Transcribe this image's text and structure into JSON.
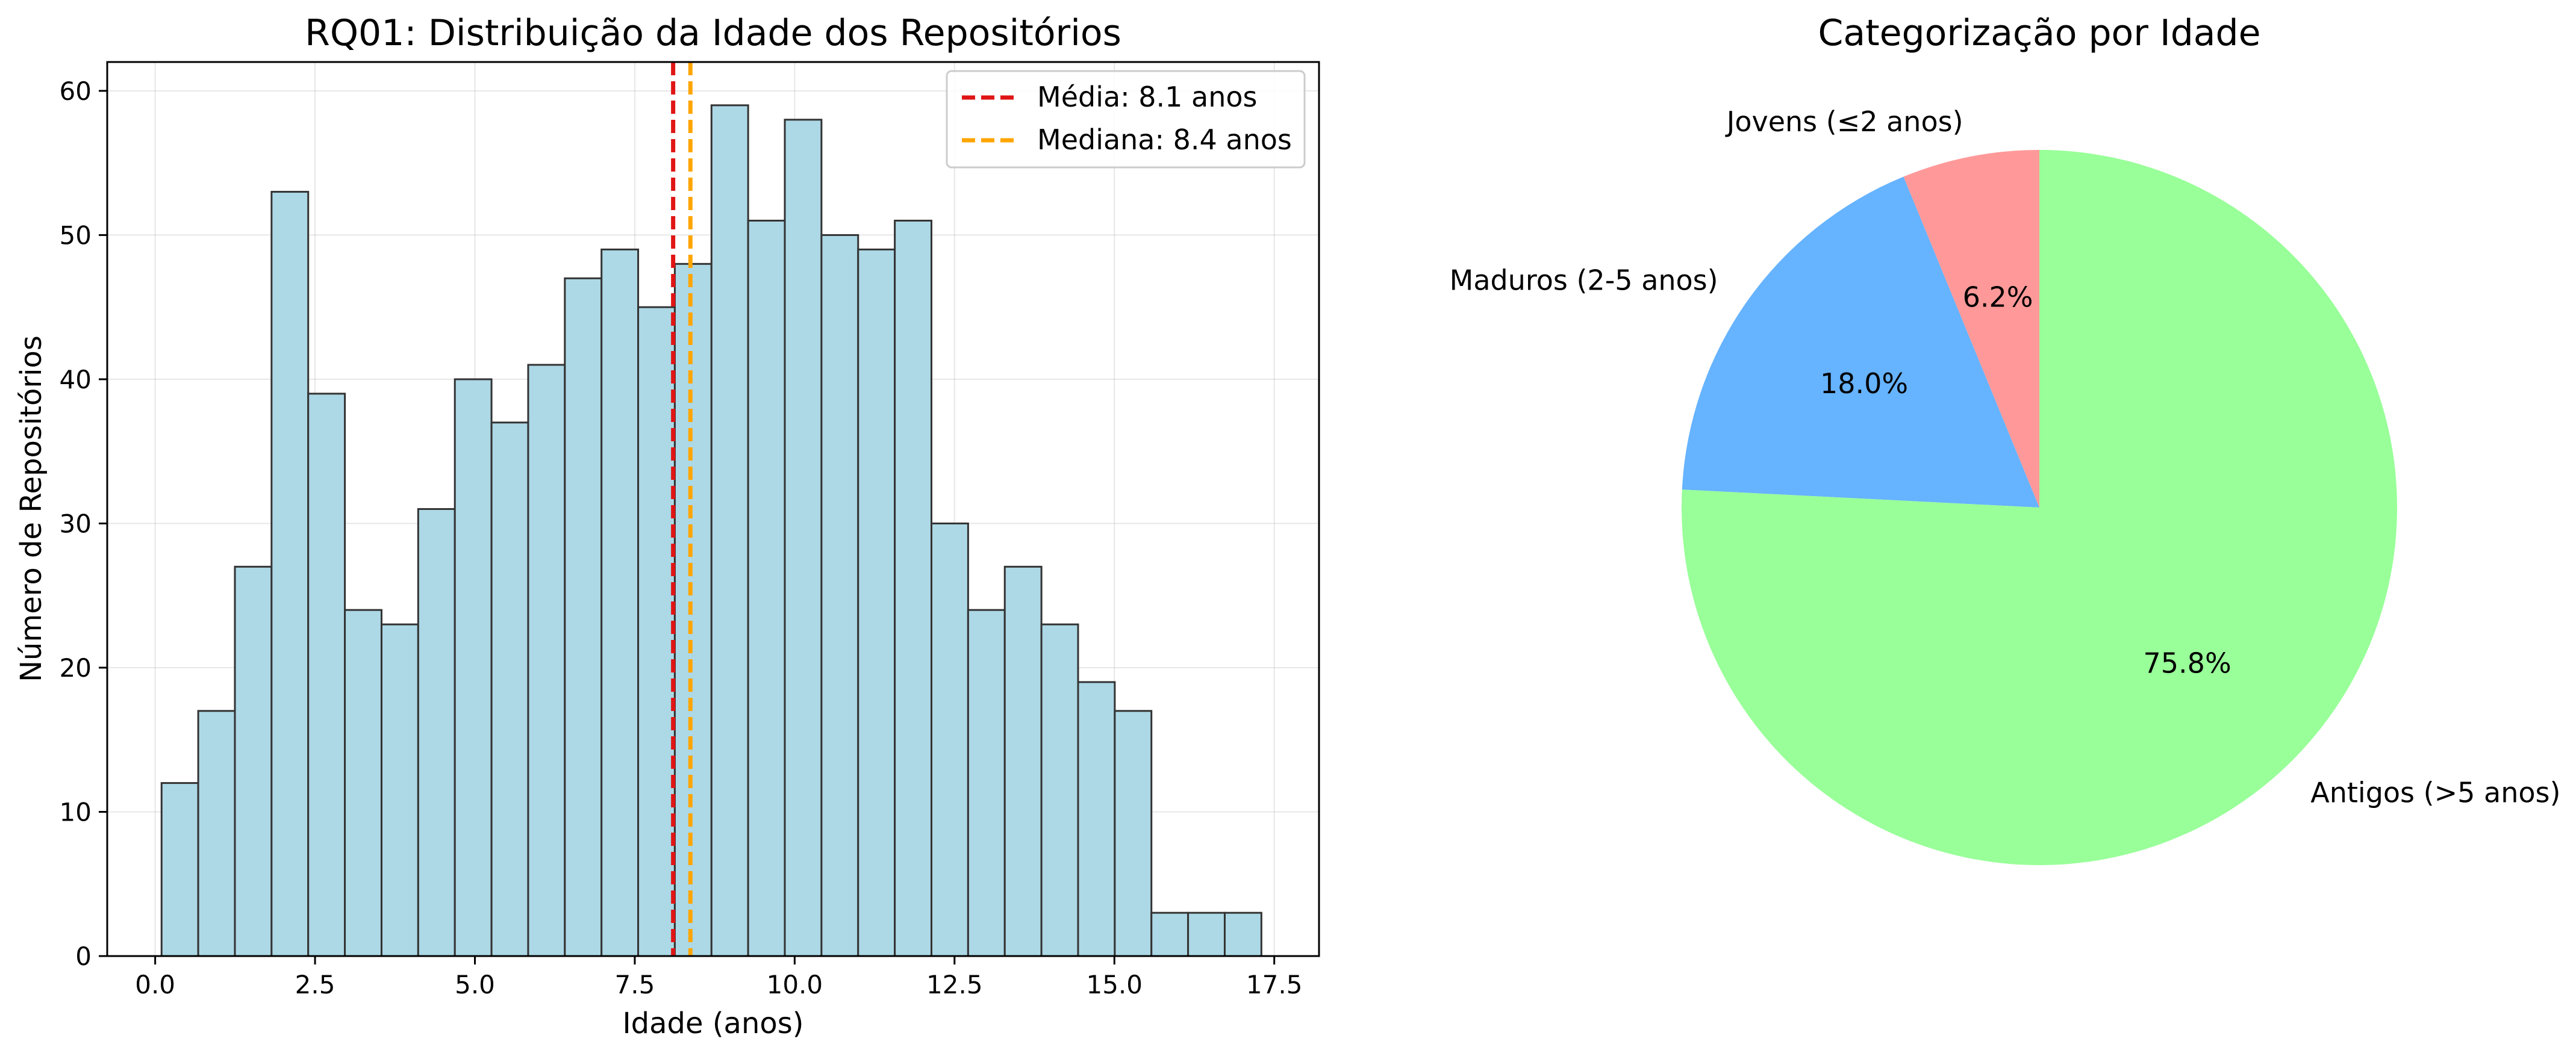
{
  "chart_data": [
    {
      "type": "bar",
      "title": "RQ01: Distribuição da Idade dos Repositórios",
      "xlabel": "Idade (anos)",
      "ylabel": "Número de Repositórios",
      "xlim": [
        -0.75,
        18.2
      ],
      "ylim": [
        0,
        62
      ],
      "grid": true,
      "xticks": [
        0.0,
        2.5,
        5.0,
        7.5,
        10.0,
        12.5,
        15.0,
        17.5
      ],
      "xtick_labels": [
        "0.0",
        "2.5",
        "5.0",
        "7.5",
        "10.0",
        "12.5",
        "15.0",
        "17.5"
      ],
      "yticks": [
        0,
        10,
        20,
        30,
        40,
        50,
        60
      ],
      "ytick_labels": [
        "0",
        "10",
        "20",
        "30",
        "40",
        "50",
        "60"
      ],
      "bins": {
        "start": 0.1,
        "width": 0.5733,
        "counts": [
          12,
          17,
          27,
          53,
          39,
          24,
          23,
          31,
          40,
          37,
          41,
          47,
          49,
          45,
          48,
          59,
          51,
          58,
          50,
          49,
          51,
          30,
          24,
          27,
          23,
          19,
          17,
          3,
          3,
          3
        ]
      },
      "bar_color": "#add8e6",
      "edge_color": "#333333",
      "reference_lines": [
        {
          "name": "Média: 8.1 anos",
          "x": 8.1,
          "color": "#e01515"
        },
        {
          "name": "Mediana: 8.4 anos",
          "x": 8.37,
          "color": "#ffa500"
        }
      ],
      "legend_position": "upper right"
    },
    {
      "type": "pie",
      "title": "Categorização por Idade",
      "slices": [
        {
          "label": "Jovens (≤2 anos)",
          "value": 6.2,
          "pct_label": "6.2%",
          "color": "#ff9999"
        },
        {
          "label": "Maduros (2-5 anos)",
          "value": 18.0,
          "pct_label": "18.0%",
          "color": "#66b3ff"
        },
        {
          "label": "Antigos (>5 anos)",
          "value": 75.8,
          "pct_label": "75.8%",
          "color": "#99ff99"
        }
      ],
      "start_angle": 90,
      "direction": "counterclockwise"
    }
  ]
}
